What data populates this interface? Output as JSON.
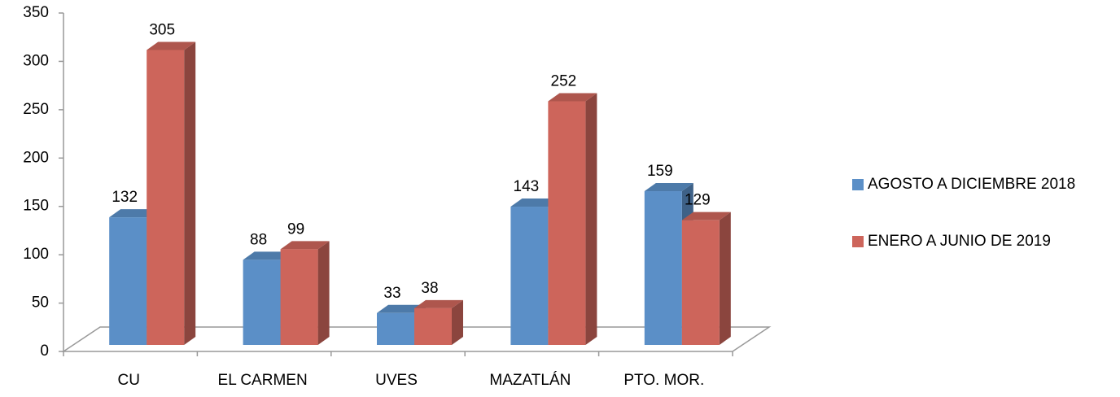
{
  "chart_data": {
    "type": "bar3d",
    "categories": [
      "CU",
      "EL CARMEN",
      "UVES",
      "MAZATLÁN",
      "PTO. MOR."
    ],
    "series": [
      {
        "name": "AGOSTO A DICIEMBRE 2018",
        "color": "#5b8fc7",
        "values": [
          132,
          88,
          33,
          143,
          159
        ]
      },
      {
        "name": "ENERO A JUNIO DE 2019",
        "color": "#cd655b",
        "values": [
          305,
          99,
          38,
          252,
          129
        ]
      }
    ],
    "ylim": [
      0,
      350
    ],
    "yticks": [
      0,
      50,
      100,
      150,
      200,
      250,
      300,
      350
    ],
    "legend": "right"
  }
}
